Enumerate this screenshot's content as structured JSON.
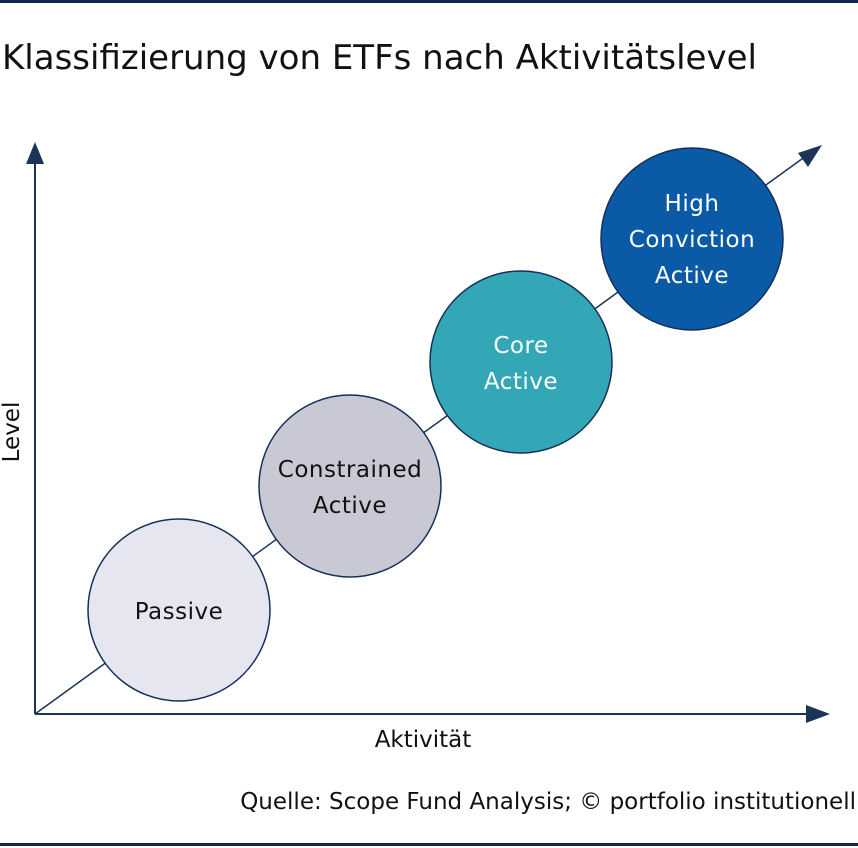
{
  "title": "Klassifizierung von ETFs nach Aktivitätslevel",
  "y_axis_label": "Level",
  "x_axis_label": "Aktivität",
  "source": "Quelle: Scope Fund Analysis; © portfolio institutionell",
  "colors": {
    "rule": "#0d2a4e",
    "axis": "#1b3557",
    "bubble_stroke": "#14305a"
  },
  "stages": [
    {
      "label": "Passive",
      "fill": "#e5e6ef",
      "text_color": "#111111"
    },
    {
      "label": "Constrained\nActive",
      "fill": "#c8c9d4",
      "text_color": "#111111"
    },
    {
      "label": "Core\nActive",
      "fill": "#34a7b6",
      "text_color": "#ffffff"
    },
    {
      "label": "High\nConviction\nActive",
      "fill": "#0a5aa6",
      "text_color": "#ffffff"
    }
  ]
}
